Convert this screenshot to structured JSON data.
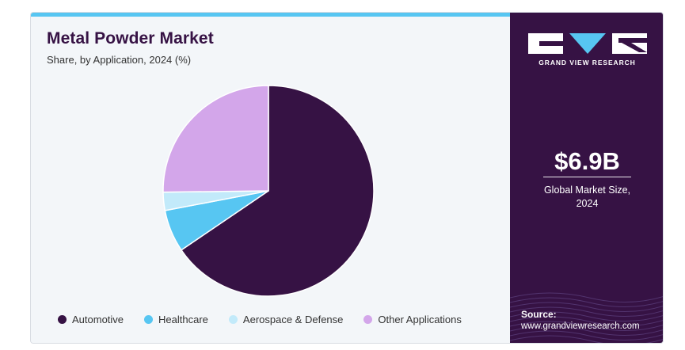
{
  "header": {
    "title": "Metal Powder Market",
    "subtitle": "Share, by Application, 2024 (%)"
  },
  "chart_data": {
    "type": "pie",
    "title": "Metal Powder Market",
    "subtitle": "Share, by Application, 2024 (%)",
    "categories": [
      "Automotive",
      "Healthcare",
      "Aerospace & Defense",
      "Other Applications"
    ],
    "values": [
      65.5,
      6.5,
      2.8,
      25.2
    ],
    "colors": [
      "#361244",
      "#57c6f2",
      "#c2eafa",
      "#d3a6ea"
    ],
    "legend_position": "bottom"
  },
  "brand": {
    "name": "GRAND VIEW RESEARCH",
    "logo_icon": "gvr-logo-icon"
  },
  "stat": {
    "value": "$6.9B",
    "label_line1": "Global Market Size,",
    "label_line2": "2024"
  },
  "source": {
    "label": "Source:",
    "url": "www.grandviewresearch.com"
  }
}
